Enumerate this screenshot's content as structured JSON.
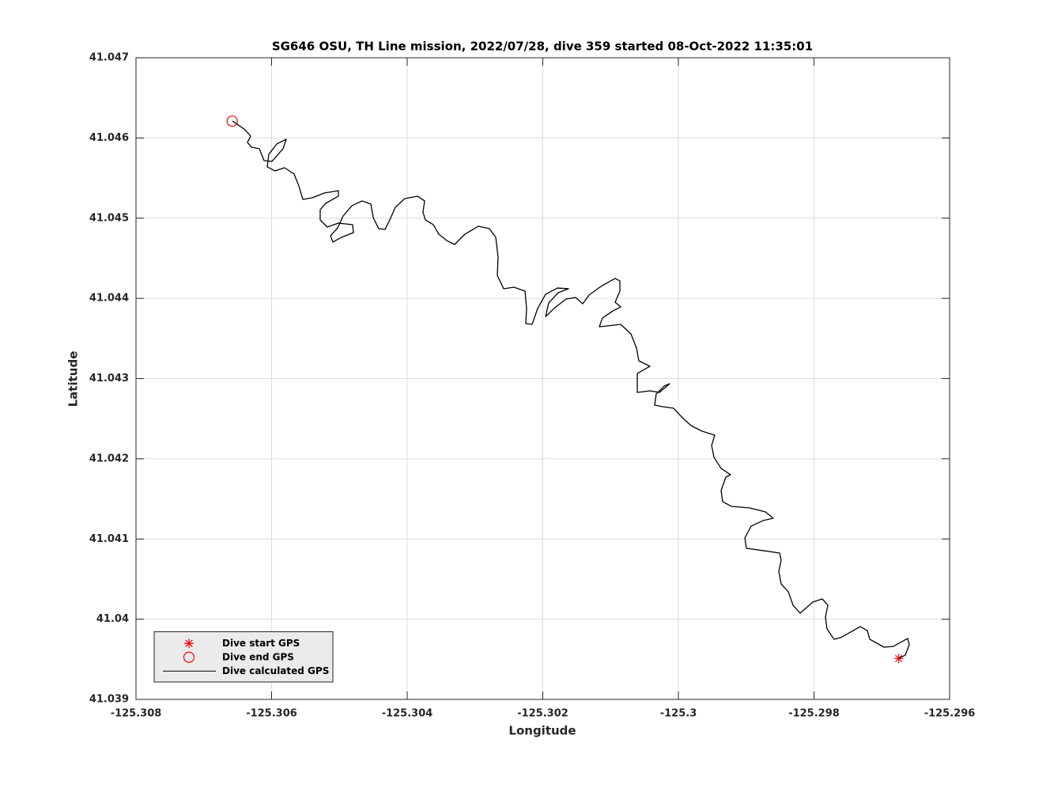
{
  "chart_data": {
    "type": "line",
    "title": "SG646 OSU, TH Line mission, 2022/07/28, dive 359 started 08-Oct-2022 11:35:01",
    "xlabel": "Longitude",
    "ylabel": "Latitude",
    "xlim": [
      -125.308,
      -125.296
    ],
    "ylim": [
      41.039,
      41.047
    ],
    "xticks": [
      -125.308,
      -125.306,
      -125.304,
      -125.302,
      -125.3,
      -125.298,
      -125.296
    ],
    "yticks": [
      41.039,
      41.04,
      41.041,
      41.042,
      41.043,
      41.044,
      41.045,
      41.046,
      41.047
    ],
    "grid": true,
    "legend": "southwest",
    "series": [
      {
        "name": "Dive start GPS",
        "color": "#ff0000",
        "marker": "asterisk",
        "x": [
          -125.29675
        ],
        "y": [
          41.03951
        ]
      },
      {
        "name": "Dive end GPS",
        "color": "#ff0000",
        "marker": "circle",
        "x": [
          -125.30658
        ],
        "y": [
          41.04621
        ]
      },
      {
        "name": "Dive calculated GPS",
        "color": "#000000",
        "marker": "none",
        "x": [
          -125.296746,
          -125.296653,
          -125.296595,
          -125.296618,
          -125.296828,
          -125.296968,
          -125.297178,
          -125.297213,
          -125.297318,
          -125.297609,
          -125.297703,
          -125.297808,
          -125.297831,
          -125.297796,
          -125.297878,
          -125.298018,
          -125.298204,
          -125.298309,
          -125.298379,
          -125.298484,
          -125.298519,
          -125.298484,
          -125.298507,
          -125.298752,
          -125.298997,
          -125.29902,
          -125.298927,
          -125.298752,
          -125.298601,
          -125.298717,
          -125.29895,
          -125.299219,
          -125.299347,
          -125.29937,
          -125.2993,
          -125.29923,
          -125.29937,
          -125.299475,
          -125.29951,
          -125.299464,
          -125.29965,
          -125.299813,
          -125.299953,
          -125.30007,
          -125.300233,
          -125.30035,
          -125.300327,
          -125.30021,
          -125.300128,
          -125.30028,
          -125.30042,
          -125.300606,
          -125.300606,
          -125.30042,
          -125.300583,
          -125.300618,
          -125.3007,
          -125.300851,
          -125.30105,
          -125.301166,
          -125.30112,
          -125.300968,
          -125.300851,
          -125.300933,
          -125.300863,
          -125.300863,
          -125.300933,
          -125.301143,
          -125.301318,
          -125.301411,
          -125.301516,
          -125.301656,
          -125.301808,
          -125.301959,
          -125.301913,
          -125.301773,
          -125.301621,
          -125.301784,
          -125.301959,
          -125.302076,
          -125.302157,
          -125.302251,
          -125.302239,
          -125.302262,
          -125.302426,
          -125.302577,
          -125.302671,
          -125.302659,
          -125.302694,
          -125.302787,
          -125.30295,
          -125.303149,
          -125.3033,
          -125.303417,
          -125.303534,
          -125.303615,
          -125.303732,
          -125.303767,
          -125.303743,
          -125.303848,
          -125.304035,
          -125.304175,
          -125.304257,
          -125.304327,
          -125.30442,
          -125.304501,
          -125.304536,
          -125.304665,
          -125.304816,
          -125.304945,
          -125.305026,
          -125.305131,
          -125.305096,
          -125.304968,
          -125.304793,
          -125.304805,
          -125.305015,
          -125.305178,
          -125.305283,
          -125.305283,
          -125.305201,
          -125.305015,
          -125.305015,
          -125.305224,
          -125.305399,
          -125.305539,
          -125.305598,
          -125.305668,
          -125.305808,
          -125.305948,
          -125.306064,
          -125.306041,
          -125.305924,
          -125.305784,
          -125.305831,
          -125.305994,
          -125.306111,
          -125.306181,
          -125.306297,
          -125.306356,
          -125.306309,
          -125.306391,
          -125.306507,
          -125.306577
        ],
        "y": [
          41.039513,
          41.039552,
          41.039681,
          41.03976,
          41.039661,
          41.039651,
          41.03975,
          41.039858,
          41.039907,
          41.039769,
          41.03975,
          41.039878,
          41.040026,
          41.040174,
          41.040253,
          41.040213,
          41.040075,
          41.040174,
          41.040342,
          41.04044,
          41.040598,
          41.040736,
          41.040825,
          41.040855,
          41.040884,
          41.041012,
          41.04116,
          41.041229,
          41.041259,
          41.041338,
          41.041387,
          41.041407,
          41.041466,
          41.041604,
          41.041772,
          41.041801,
          41.04188,
          41.042018,
          41.042166,
          41.042295,
          41.042344,
          41.042413,
          41.042522,
          41.04263,
          41.04265,
          41.04267,
          41.042808,
          41.042906,
          41.042936,
          41.042827,
          41.042847,
          41.042827,
          41.043064,
          41.043153,
          41.043222,
          41.04338,
          41.043557,
          41.043676,
          41.043656,
          41.043646,
          41.043755,
          41.043843,
          41.043893,
          41.043952,
          41.04409,
          41.044218,
          41.044248,
          41.044149,
          41.044041,
          41.043932,
          41.044011,
          41.043991,
          41.043893,
          41.043774,
          41.043942,
          41.04407,
          41.04412,
          41.044129,
          41.044051,
          41.043873,
          41.043676,
          41.043686,
          41.043873,
          41.04409,
          41.044139,
          41.04412,
          41.044287,
          41.044514,
          41.044761,
          41.044869,
          41.044899,
          41.0448,
          41.044672,
          41.044721,
          41.0448,
          41.044919,
          41.044978,
          41.045076,
          41.045215,
          41.045274,
          41.045244,
          41.045136,
          41.044978,
          41.044859,
          41.044869,
          41.045007,
          41.045175,
          41.045215,
          41.045155,
          41.045027,
          41.044879,
          41.044781,
          41.044702,
          41.044761,
          41.04482,
          41.044919,
          41.044938,
          41.044889,
          41.044978,
          41.045106,
          41.045185,
          41.045274,
          41.045343,
          41.045313,
          41.045254,
          41.045234,
          41.045402,
          41.04555,
          41.045629,
          41.045589,
          41.045639,
          41.045797,
          41.045925,
          41.045984,
          41.045866,
          41.045708,
          41.045718,
          41.045866,
          41.045885,
          41.045945,
          41.046023,
          41.046102,
          41.046171,
          41.046211
        ]
      }
    ]
  }
}
